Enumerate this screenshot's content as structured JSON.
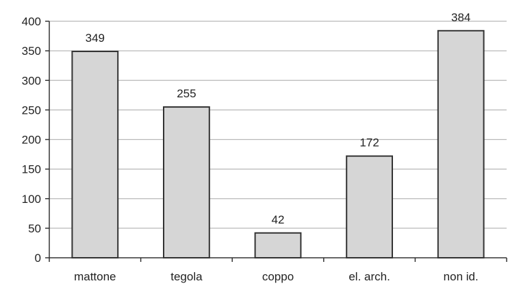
{
  "chart_data": {
    "type": "bar",
    "title": "",
    "xlabel": "",
    "ylabel": "",
    "categories": [
      "mattone",
      "tegola",
      "coppo",
      "el. arch.",
      "non id."
    ],
    "values": [
      349,
      255,
      42,
      172,
      384
    ],
    "data_labels": [
      "349",
      "255",
      "42",
      "172",
      "384"
    ],
    "ylim": [
      0,
      400
    ],
    "yticks": [
      0,
      50,
      100,
      150,
      200,
      250,
      300,
      350,
      400
    ],
    "ytick_labels": [
      "0",
      "50",
      "100",
      "150",
      "200",
      "250",
      "300",
      "350",
      "400"
    ],
    "grid": true,
    "legend": "none",
    "colors": {
      "bar_fill": "#d6d6d6",
      "bar_stroke": "#333333",
      "grid": "#b8b8b8",
      "axis": "#333333",
      "text": "#222222"
    }
  }
}
